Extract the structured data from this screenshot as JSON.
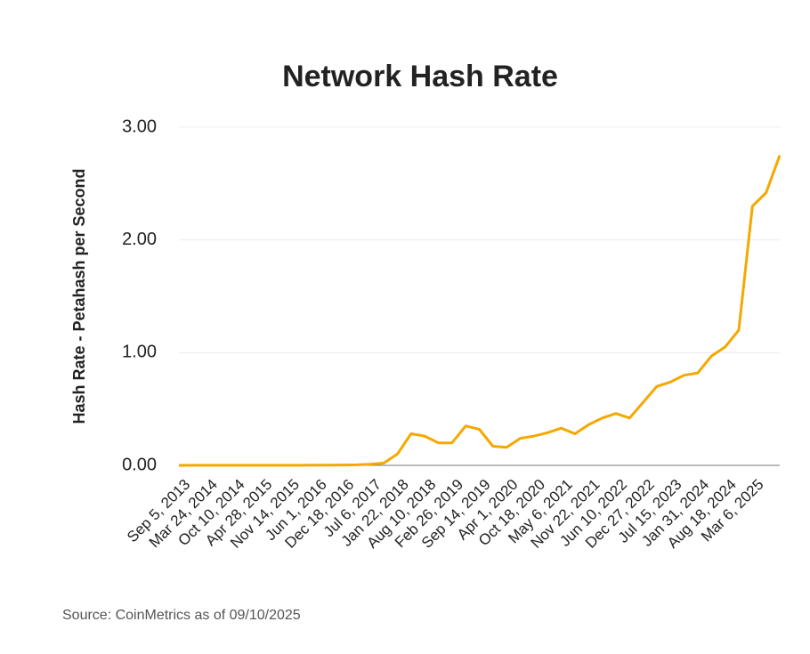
{
  "chart_data": {
    "type": "line",
    "title": "Network Hash Rate",
    "ylabel": "Hash Rate - Petahash per Second",
    "source": "Source: CoinMetrics as of 09/10/2025",
    "categories": [
      "Sep 5, 2013",
      null,
      "Mar 24, 2014",
      null,
      "Oct 10, 2014",
      null,
      "Apr 28, 2015",
      null,
      "Nov 14, 2015",
      null,
      "Jun 1, 2016",
      null,
      "Dec 18, 2016",
      null,
      "Jul 6, 2017",
      null,
      "Jan 22, 2018",
      null,
      "Aug 10, 2018",
      null,
      "Feb 26, 2019",
      null,
      "Sep 14, 2019",
      null,
      "Apr 1, 2020",
      null,
      "Oct 18, 2020",
      null,
      "May 6, 2021",
      null,
      "Nov 22, 2021",
      null,
      "Jun 10, 2022",
      null,
      "Dec 27, 2022",
      null,
      "Jul 15, 2023",
      null,
      "Jan 31, 2024",
      null,
      "Aug 18, 2024",
      null,
      "Mar 6, 2025",
      null,
      null
    ],
    "series": [
      {
        "name": "Hash Rate",
        "color": "#f5a800",
        "values": [
          0.0,
          0.001,
          0.001,
          0.001,
          0.001,
          0.001,
          0.001,
          0.001,
          0.001,
          0.001,
          0.002,
          0.002,
          0.003,
          0.005,
          0.01,
          0.02,
          0.1,
          0.28,
          0.26,
          0.2,
          0.2,
          0.35,
          0.32,
          0.17,
          0.16,
          0.24,
          0.26,
          0.29,
          0.33,
          0.28,
          0.36,
          0.42,
          0.46,
          0.42,
          0.56,
          0.7,
          0.74,
          0.8,
          0.82,
          0.97,
          1.05,
          1.2,
          2.3,
          2.42,
          2.75
        ]
      }
    ],
    "ylim": [
      0,
      3
    ],
    "yticks": [
      {
        "value": 0,
        "label": "0.00"
      },
      {
        "value": 1,
        "label": "1.00"
      },
      {
        "value": 2,
        "label": "2.00"
      },
      {
        "value": 3,
        "label": "3.00"
      }
    ],
    "grid": true
  }
}
